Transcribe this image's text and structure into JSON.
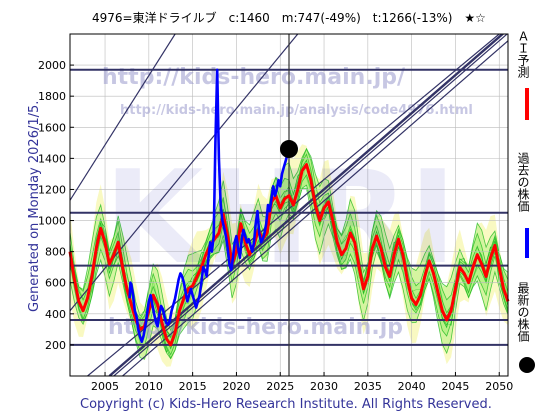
{
  "chart_data": {
    "type": "line",
    "title": "4976=東洋ドライルブ　c:1460　m:747(-49%)　t:1266(-13%)　★☆",
    "ylabel_left": "Generated on Monday 2026/1/5.",
    "footer": "Copyright (c) Kids-Hero Research Institute. All Rights Reserved.",
    "watermark_url_1": "http://kids-hero.main.jp/",
    "watermark_url_2": "http://kids-hero.main.jp/analysis/code4976.html",
    "watermark_url_3": "http://kids-hero.main.jp",
    "watermark_big": "KHRI",
    "xlim": [
      2001,
      2051
    ],
    "ylim": [
      0,
      2200
    ],
    "xticks": [
      2005,
      2010,
      2015,
      2020,
      2025,
      2030,
      2035,
      2040,
      2045,
      2050
    ],
    "yticks": [
      200,
      400,
      600,
      800,
      1000,
      1200,
      1400,
      1600,
      1800,
      2000
    ],
    "grid": true,
    "hlines": [
      200,
      360,
      710,
      1050,
      1970
    ],
    "vline_year": 2026,
    "latest_point": {
      "year": 2026,
      "value": 1460
    },
    "diagonals": [
      {
        "x1": 2007.0,
        "y1": 0,
        "x2": 2051,
        "y2": 2156,
        "width": 1.2
      },
      {
        "x1": 2006.0,
        "y1": 0,
        "x2": 2051,
        "y2": 2205,
        "width": 1.2
      },
      {
        "x1": 2005.5,
        "y1": 0,
        "x2": 2051,
        "y2": 2230,
        "width": 2.4
      },
      {
        "x1": 2003.0,
        "y1": 0,
        "x2": 2050,
        "y2": 2200,
        "width": 1.2
      },
      {
        "x1": 2001,
        "y1": 420,
        "x2": 2027,
        "y2": 2200,
        "width": 1.2
      },
      {
        "x1": 2001,
        "y1": 1130,
        "x2": 2013,
        "y2": 2200,
        "width": 1.2
      }
    ],
    "legend_right": [
      {
        "label": "ＡＩ予測",
        "color": "#ff0000",
        "marker": "line"
      },
      {
        "label": "過去の株価",
        "color": "#0000ff",
        "marker": "line"
      },
      {
        "label": "最新の株価",
        "color": "#000000",
        "marker": "dot"
      }
    ],
    "series": [
      {
        "name": "過去の株価",
        "color": "#0000ff",
        "points": [
          [
            2007.8,
            500
          ],
          [
            2007.9,
            600
          ],
          [
            2008.0,
            590
          ],
          [
            2008.2,
            520
          ],
          [
            2008.4,
            420
          ],
          [
            2008.6,
            380
          ],
          [
            2008.8,
            300
          ],
          [
            2009.0,
            250
          ],
          [
            2009.2,
            220
          ],
          [
            2009.4,
            260
          ],
          [
            2009.6,
            320
          ],
          [
            2009.8,
            400
          ],
          [
            2010.0,
            480
          ],
          [
            2010.2,
            520
          ],
          [
            2010.4,
            460
          ],
          [
            2010.6,
            400
          ],
          [
            2010.8,
            350
          ],
          [
            2011.0,
            320
          ],
          [
            2011.2,
            400
          ],
          [
            2011.4,
            450
          ],
          [
            2011.6,
            430
          ],
          [
            2011.8,
            380
          ],
          [
            2012.0,
            340
          ],
          [
            2012.2,
            330
          ],
          [
            2012.4,
            360
          ],
          [
            2012.6,
            420
          ],
          [
            2012.8,
            460
          ],
          [
            2013.0,
            500
          ],
          [
            2013.2,
            560
          ],
          [
            2013.4,
            620
          ],
          [
            2013.6,
            660
          ],
          [
            2013.8,
            640
          ],
          [
            2014.0,
            600
          ],
          [
            2014.2,
            540
          ],
          [
            2014.4,
            480
          ],
          [
            2014.6,
            520
          ],
          [
            2014.8,
            560
          ],
          [
            2015.0,
            520
          ],
          [
            2015.2,
            480
          ],
          [
            2015.4,
            440
          ],
          [
            2015.6,
            480
          ],
          [
            2015.8,
            520
          ],
          [
            2016.0,
            600
          ],
          [
            2016.2,
            700
          ],
          [
            2016.4,
            680
          ],
          [
            2016.6,
            640
          ],
          [
            2016.8,
            760
          ],
          [
            2017.0,
            860
          ],
          [
            2017.2,
            800
          ],
          [
            2017.4,
            900
          ],
          [
            2017.6,
            1500
          ],
          [
            2017.8,
            1970
          ],
          [
            2018.0,
            1400
          ],
          [
            2018.2,
            1100
          ],
          [
            2018.4,
            1000
          ],
          [
            2018.6,
            950
          ],
          [
            2018.8,
            900
          ],
          [
            2019.0,
            820
          ],
          [
            2019.2,
            720
          ],
          [
            2019.4,
            680
          ],
          [
            2019.6,
            760
          ],
          [
            2019.8,
            860
          ],
          [
            2020.0,
            900
          ],
          [
            2020.2,
            820
          ],
          [
            2020.4,
            760
          ],
          [
            2020.6,
            880
          ],
          [
            2020.8,
            940
          ],
          [
            2021.0,
            900
          ],
          [
            2021.2,
            860
          ],
          [
            2021.4,
            880
          ],
          [
            2021.6,
            840
          ],
          [
            2021.8,
            800
          ],
          [
            2022.0,
            860
          ],
          [
            2022.2,
            980
          ],
          [
            2022.4,
            1060
          ],
          [
            2022.6,
            920
          ],
          [
            2022.8,
            860
          ],
          [
            2023.0,
            880
          ],
          [
            2023.2,
            920
          ],
          [
            2023.4,
            980
          ],
          [
            2023.6,
            1100
          ],
          [
            2023.8,
            1060
          ],
          [
            2024.0,
            1140
          ],
          [
            2024.2,
            1220
          ],
          [
            2024.4,
            1160
          ],
          [
            2024.6,
            1200
          ],
          [
            2024.8,
            1260
          ],
          [
            2025.0,
            1220
          ],
          [
            2025.2,
            1300
          ],
          [
            2025.4,
            1340
          ],
          [
            2025.6,
            1380
          ],
          [
            2025.8,
            1420
          ],
          [
            2026.0,
            1460
          ]
        ]
      },
      {
        "name": "ＡＩ予測",
        "color": "#ff0000",
        "points": [
          [
            2001.0,
            800
          ],
          [
            2001.5,
            620
          ],
          [
            2002.0,
            480
          ],
          [
            2002.5,
            420
          ],
          [
            2003.0,
            500
          ],
          [
            2003.5,
            640
          ],
          [
            2004.0,
            820
          ],
          [
            2004.5,
            950
          ],
          [
            2005.0,
            860
          ],
          [
            2005.5,
            720
          ],
          [
            2006.0,
            780
          ],
          [
            2006.5,
            860
          ],
          [
            2007.0,
            700
          ],
          [
            2007.5,
            560
          ],
          [
            2008.0,
            460
          ],
          [
            2008.5,
            360
          ],
          [
            2009.0,
            300
          ],
          [
            2009.5,
            320
          ],
          [
            2010.0,
            420
          ],
          [
            2010.5,
            520
          ],
          [
            2011.0,
            460
          ],
          [
            2011.5,
            340
          ],
          [
            2012.0,
            240
          ],
          [
            2012.5,
            200
          ],
          [
            2013.0,
            280
          ],
          [
            2013.5,
            420
          ],
          [
            2014.0,
            500
          ],
          [
            2014.5,
            560
          ],
          [
            2015.0,
            580
          ],
          [
            2015.5,
            640
          ],
          [
            2016.0,
            700
          ],
          [
            2016.5,
            780
          ],
          [
            2017.0,
            840
          ],
          [
            2017.5,
            880
          ],
          [
            2018.0,
            920
          ],
          [
            2018.5,
            1040
          ],
          [
            2019.0,
            900
          ],
          [
            2019.5,
            720
          ],
          [
            2020.0,
            800
          ],
          [
            2020.5,
            980
          ],
          [
            2021.0,
            860
          ],
          [
            2021.5,
            780
          ],
          [
            2022.0,
            840
          ],
          [
            2022.5,
            940
          ],
          [
            2023.0,
            880
          ],
          [
            2023.5,
            920
          ],
          [
            2024.0,
            1120
          ],
          [
            2024.5,
            1160
          ],
          [
            2025.0,
            1080
          ],
          [
            2025.5,
            1140
          ],
          [
            2026.0,
            1160
          ],
          [
            2026.5,
            1100
          ],
          [
            2027.0,
            1200
          ],
          [
            2027.5,
            1320
          ],
          [
            2028.0,
            1360
          ],
          [
            2028.5,
            1260
          ],
          [
            2029.0,
            1100
          ],
          [
            2029.5,
            1000
          ],
          [
            2030.0,
            1080
          ],
          [
            2030.5,
            1120
          ],
          [
            2031.0,
            1000
          ],
          [
            2031.5,
            860
          ],
          [
            2032.0,
            780
          ],
          [
            2032.5,
            820
          ],
          [
            2033.0,
            920
          ],
          [
            2033.5,
            860
          ],
          [
            2034.0,
            700
          ],
          [
            2034.5,
            560
          ],
          [
            2035.0,
            640
          ],
          [
            2035.5,
            820
          ],
          [
            2036.0,
            900
          ],
          [
            2036.5,
            820
          ],
          [
            2037.0,
            700
          ],
          [
            2037.5,
            640
          ],
          [
            2038.0,
            780
          ],
          [
            2038.5,
            880
          ],
          [
            2039.0,
            780
          ],
          [
            2039.5,
            620
          ],
          [
            2040.0,
            500
          ],
          [
            2040.5,
            460
          ],
          [
            2041.0,
            520
          ],
          [
            2041.5,
            640
          ],
          [
            2042.0,
            740
          ],
          [
            2042.5,
            660
          ],
          [
            2043.0,
            540
          ],
          [
            2043.5,
            420
          ],
          [
            2044.0,
            360
          ],
          [
            2044.5,
            420
          ],
          [
            2045.0,
            560
          ],
          [
            2045.5,
            700
          ],
          [
            2046.0,
            660
          ],
          [
            2046.5,
            600
          ],
          [
            2047.0,
            700
          ],
          [
            2047.5,
            780
          ],
          [
            2048.0,
            720
          ],
          [
            2048.5,
            640
          ],
          [
            2049.0,
            760
          ],
          [
            2049.5,
            840
          ],
          [
            2050.0,
            700
          ],
          [
            2050.5,
            560
          ],
          [
            2051.0,
            480
          ]
        ]
      }
    ],
    "band_colors": {
      "band_fill": "#a9ee78",
      "band_line": "#22bb22",
      "band_yellow": "#f7f7a8"
    }
  }
}
